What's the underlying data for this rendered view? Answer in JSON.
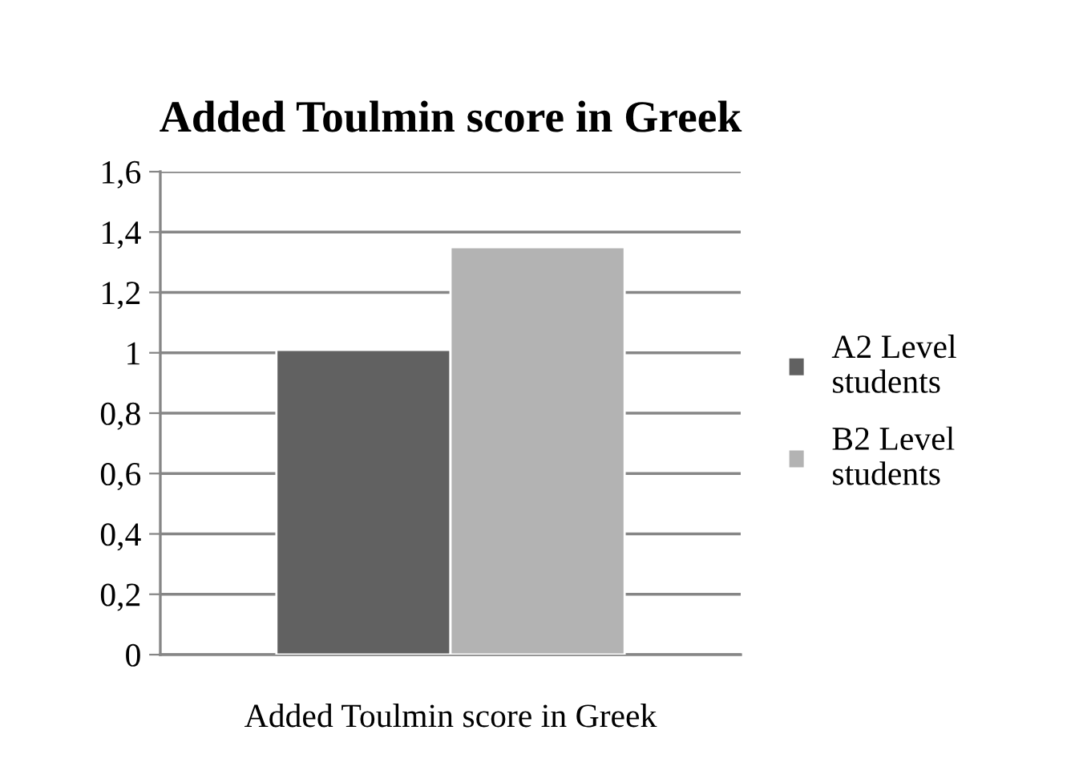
{
  "chart_data": {
    "type": "bar",
    "title": "Added Toulmin score in Greek",
    "categories": [
      "Added Toulmin score in Greek"
    ],
    "series": [
      {
        "name": "A2 Level\nstudents",
        "color": "#616161",
        "values": [
          1.01
        ]
      },
      {
        "name": "B2 Level\nstudents",
        "color": "#b3b3b3",
        "values": [
          1.35
        ]
      }
    ],
    "ylim": [
      0,
      1.6
    ],
    "yticks": [
      0,
      {
        "value": 0.2,
        "label": "0,2"
      },
      {
        "value": 0.4,
        "label": "0,4"
      },
      {
        "value": 0.6,
        "label": "0,6"
      },
      {
        "value": 0.8,
        "label": "0,8"
      },
      1,
      {
        "value": 1.2,
        "label": "1,2"
      },
      {
        "value": 1.4,
        "label": "1,4"
      },
      {
        "value": 1.6,
        "label": "1,6"
      }
    ],
    "grid": "y",
    "legend": "right"
  }
}
